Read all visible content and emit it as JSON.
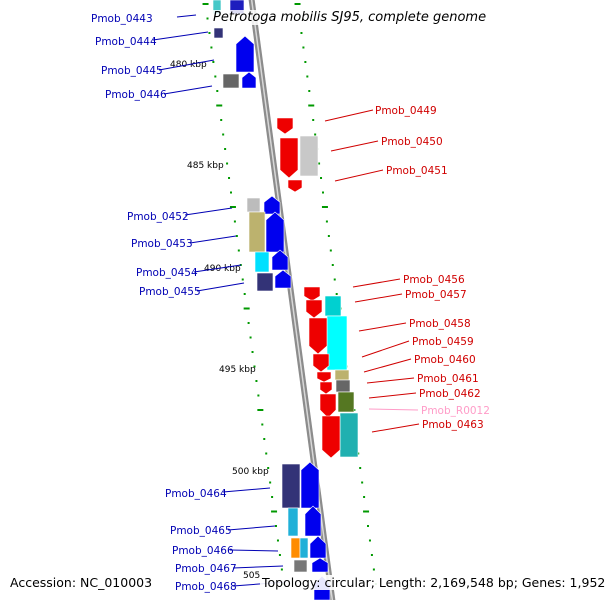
{
  "title": "Petrotoga mobilis SJ95, complete genome",
  "footer": {
    "accession": "Accession: NC_010003",
    "stats": "Topology: circular; Length: 2,169,548 bp; Genes: 1,952"
  },
  "colors": {
    "left_label": "#0000b4",
    "right_label": "#d00000",
    "rna_label": "#ff9cc8",
    "backbone": "#8c8c8c",
    "tick": "#009900"
  },
  "scale": {
    "unit": "kbp",
    "labels": [
      "480 kbp",
      "485 kbp",
      "490 kbp",
      "495 kbp",
      "500 kbp",
      "505"
    ]
  },
  "left_labels": [
    "Pmob_0443",
    "Pmob_0444",
    "Pmob_0445",
    "Pmob_0446",
    "Pmob_0452",
    "Pmob_0453",
    "Pmob_0454",
    "Pmob_0455",
    "Pmob_0464",
    "Pmob_0465",
    "Pmob_0466",
    "Pmob_0467",
    "Pmob_0468"
  ],
  "right_labels": [
    "Pmob_0449",
    "Pmob_0450",
    "Pmob_0451",
    "Pmob_0456",
    "Pmob_0457",
    "Pmob_0458",
    "Pmob_0459",
    "Pmob_0460",
    "Pmob_0461",
    "Pmob_0462",
    "Pmob_R0012",
    "Pmob_0463"
  ]
}
